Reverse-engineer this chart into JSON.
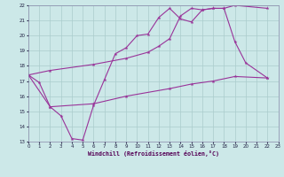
{
  "bg_color": "#cce8e8",
  "grid_color": "#aacccc",
  "line_color": "#993399",
  "xlabel": "Windchill (Refroidissement éolien,°C)",
  "xlim": [
    0,
    23
  ],
  "ylim": [
    13,
    22
  ],
  "s1_x": [
    0,
    1,
    2,
    3,
    4,
    5,
    6,
    7,
    8,
    9,
    10,
    11,
    12,
    13,
    14,
    15,
    16,
    17,
    18,
    19,
    20,
    22
  ],
  "s1_y": [
    17.4,
    16.9,
    15.3,
    14.7,
    13.2,
    13.1,
    15.4,
    17.1,
    18.8,
    19.2,
    20.0,
    20.1,
    21.2,
    21.8,
    21.1,
    20.9,
    21.7,
    21.8,
    21.8,
    19.6,
    18.2,
    17.2
  ],
  "s2_x": [
    0,
    2,
    6,
    9,
    11,
    12,
    13,
    14,
    15,
    16,
    17,
    18,
    19,
    22
  ],
  "s2_y": [
    17.4,
    17.7,
    18.1,
    18.5,
    18.9,
    19.3,
    19.8,
    21.3,
    21.8,
    21.7,
    21.8,
    21.8,
    22.0,
    21.8
  ],
  "s3_x": [
    0,
    2,
    6,
    9,
    13,
    15,
    17,
    19,
    22
  ],
  "s3_y": [
    17.4,
    15.3,
    15.5,
    16.0,
    16.5,
    16.8,
    17.0,
    17.3,
    17.2
  ]
}
